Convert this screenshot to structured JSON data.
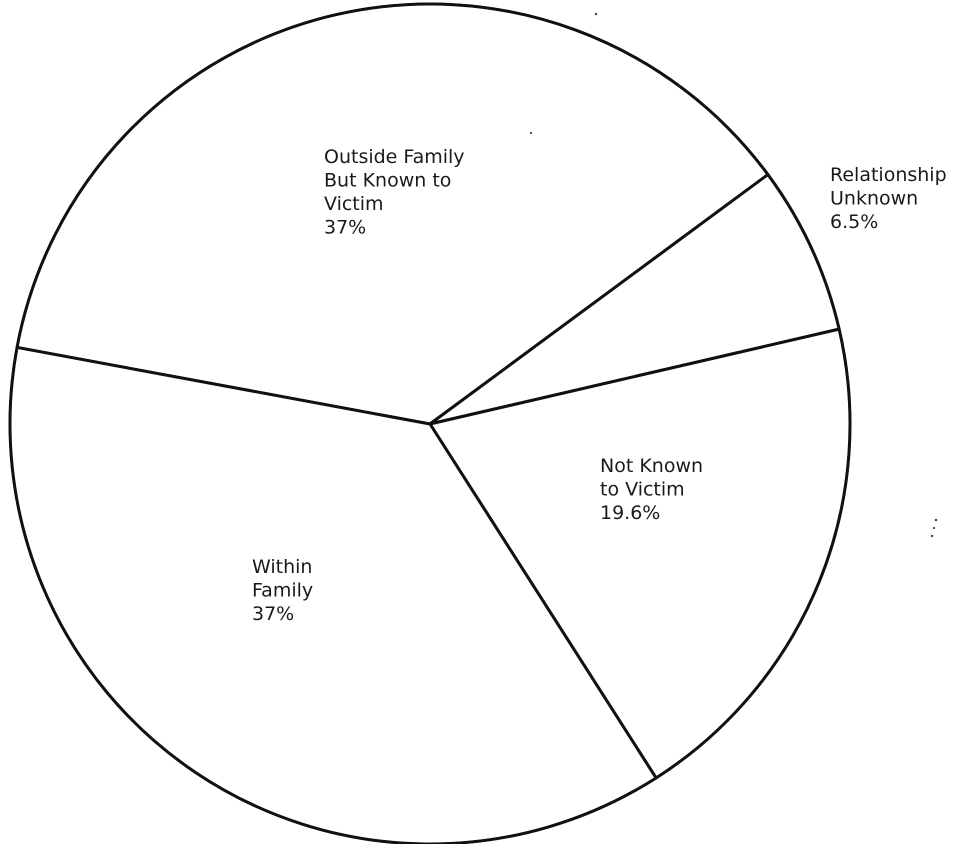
{
  "chart_data": {
    "type": "pie",
    "title": "",
    "slices": [
      {
        "label_lines": [
          "Outside Family",
          "But Known to",
          "Victim"
        ],
        "value": 37,
        "value_label": "37%"
      },
      {
        "label_lines": [
          "Relationship",
          "Unknown"
        ],
        "value": 6.5,
        "value_label": "6.5%"
      },
      {
        "label_lines": [
          "Not Known",
          "to Victim"
        ],
        "value": 19.6,
        "value_label": "19.6%"
      },
      {
        "label_lines": [
          "Within",
          "Family"
        ],
        "value": 37,
        "value_label": "37%"
      }
    ],
    "colors": {
      "fill": "#ffffff",
      "stroke": "#111111",
      "text": "#1a1a1a"
    }
  }
}
